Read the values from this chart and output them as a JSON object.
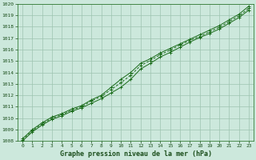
{
  "title": "Graphe pression niveau de la mer (hPa)",
  "x_values": [
    0,
    1,
    2,
    3,
    4,
    5,
    6,
    7,
    8,
    9,
    10,
    11,
    12,
    13,
    14,
    15,
    16,
    17,
    18,
    19,
    20,
    21,
    22,
    23
  ],
  "line1": [
    1008.2,
    1009.0,
    1009.6,
    1010.1,
    1010.4,
    1010.8,
    1011.1,
    1011.6,
    1012.0,
    1012.7,
    1013.4,
    1014.0,
    1014.8,
    1015.2,
    1015.7,
    1016.1,
    1016.5,
    1016.9,
    1017.3,
    1017.7,
    1018.1,
    1018.6,
    1019.1,
    1019.8
  ],
  "line2": [
    1008.1,
    1008.9,
    1009.5,
    1010.0,
    1010.3,
    1010.7,
    1011.0,
    1011.5,
    1011.9,
    1012.5,
    1013.1,
    1013.75,
    1014.6,
    1015.05,
    1015.55,
    1015.95,
    1016.4,
    1016.8,
    1017.15,
    1017.55,
    1017.95,
    1018.45,
    1018.95,
    1019.6
  ],
  "line3": [
    1008.0,
    1008.8,
    1009.4,
    1009.9,
    1010.2,
    1010.6,
    1010.9,
    1011.3,
    1011.7,
    1012.2,
    1012.7,
    1013.4,
    1014.3,
    1014.8,
    1015.35,
    1015.75,
    1016.2,
    1016.65,
    1017.05,
    1017.4,
    1017.8,
    1018.3,
    1018.8,
    1019.45
  ],
  "line_color": "#1a6b1a",
  "bg_color": "#cce8dc",
  "grid_color": "#9dc4b0",
  "text_color": "#1a4d1a",
  "ylim": [
    1008,
    1020
  ],
  "xlim_min": -0.5,
  "xlim_max": 23.5,
  "yticks": [
    1008,
    1009,
    1010,
    1011,
    1012,
    1013,
    1014,
    1015,
    1016,
    1017,
    1018,
    1019,
    1020
  ],
  "xticks": [
    0,
    1,
    2,
    3,
    4,
    5,
    6,
    7,
    8,
    9,
    10,
    11,
    12,
    13,
    14,
    15,
    16,
    17,
    18,
    19,
    20,
    21,
    22,
    23
  ],
  "title_fontsize": 6.0,
  "tick_fontsize": 4.5
}
